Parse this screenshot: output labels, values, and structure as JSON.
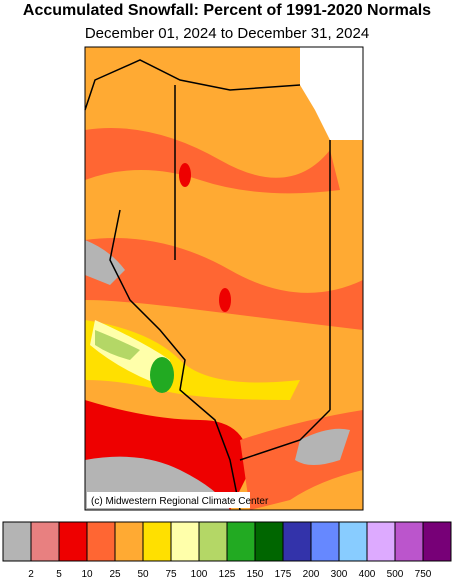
{
  "title": "Accumulated Snowfall: Percent of 1991-2020 Normals",
  "subtitle": "December 01, 2024 to December 31, 2024",
  "credit": "(c) Midwestern Regional Climate Center",
  "legend": {
    "colors": [
      "#b4b4b4",
      "#e88080",
      "#ee0000",
      "#ff6633",
      "#ffaa33",
      "#ffe000",
      "#ffffaa",
      "#b4d766",
      "#22aa22",
      "#006600",
      "#3333aa",
      "#6688ff",
      "#88ccff",
      "#ddaaff",
      "#bb55cc",
      "#770077"
    ],
    "breaks": [
      2,
      5,
      10,
      25,
      50,
      75,
      100,
      125,
      150,
      175,
      200,
      300,
      400,
      500,
      750
    ]
  }
}
